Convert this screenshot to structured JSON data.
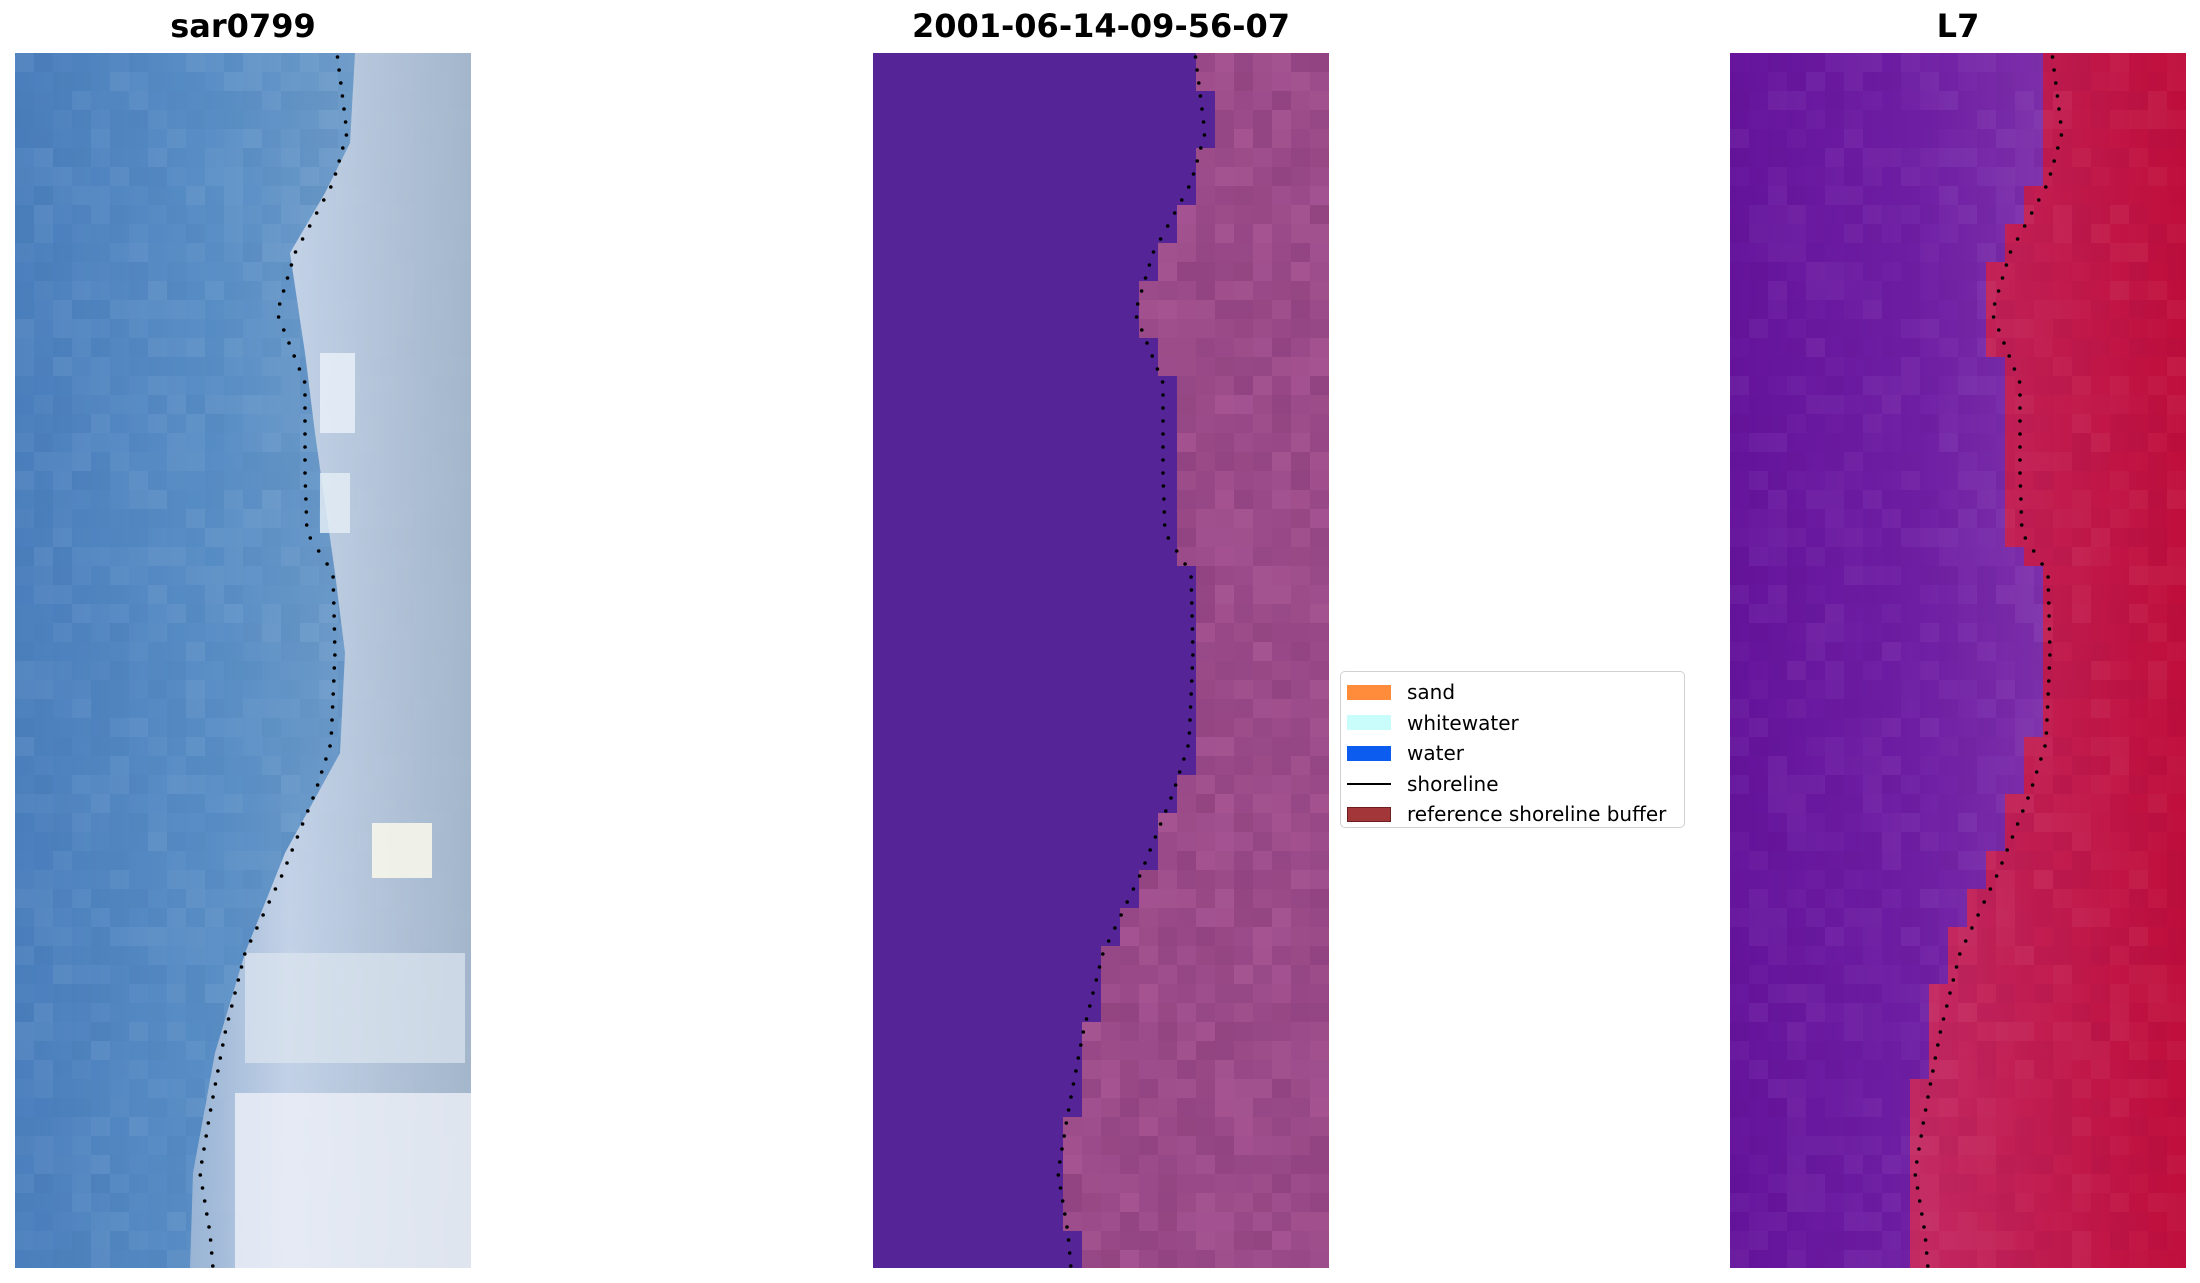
{
  "panels": [
    {
      "title": "sar0799",
      "kind": "rgb-image",
      "colors": {
        "water": "#4f86bd",
        "water_dark": "#4577b3",
        "shallow": "#6f9fc9",
        "foam": "#c8d4e6",
        "foam_bright": "#f2f4fa",
        "beach": "#9fb4cc"
      }
    },
    {
      "title": "2001-06-14-09-56-07",
      "kind": "classified-image",
      "colors": {
        "water": "#552497",
        "land": "#9a4a88",
        "land_light": "#b4619e",
        "land_dark": "#8a3f7c"
      }
    },
    {
      "title": "L7",
      "kind": "index-image",
      "colors": {
        "water": "#6a1aa0",
        "water_light": "#7a2aa8",
        "transition": "#c04b96",
        "land": "#c41c48",
        "land_dark": "#b60f3a"
      }
    }
  ],
  "legend": {
    "items": [
      {
        "label": "sand",
        "type": "patch",
        "color": "#ff8c3a",
        "edge": "#ff8c3a"
      },
      {
        "label": "whitewater",
        "type": "patch",
        "color": "#c9fdfb",
        "edge": "#c9fdfb"
      },
      {
        "label": "water",
        "type": "patch",
        "color": "#0c5cf0",
        "edge": "#0c5cf0"
      },
      {
        "label": "shoreline",
        "type": "line",
        "color": "#000000"
      },
      {
        "label": "reference shoreline buffer",
        "type": "patch",
        "color": "#a33638",
        "edge": "#6b1f20"
      }
    ]
  }
}
